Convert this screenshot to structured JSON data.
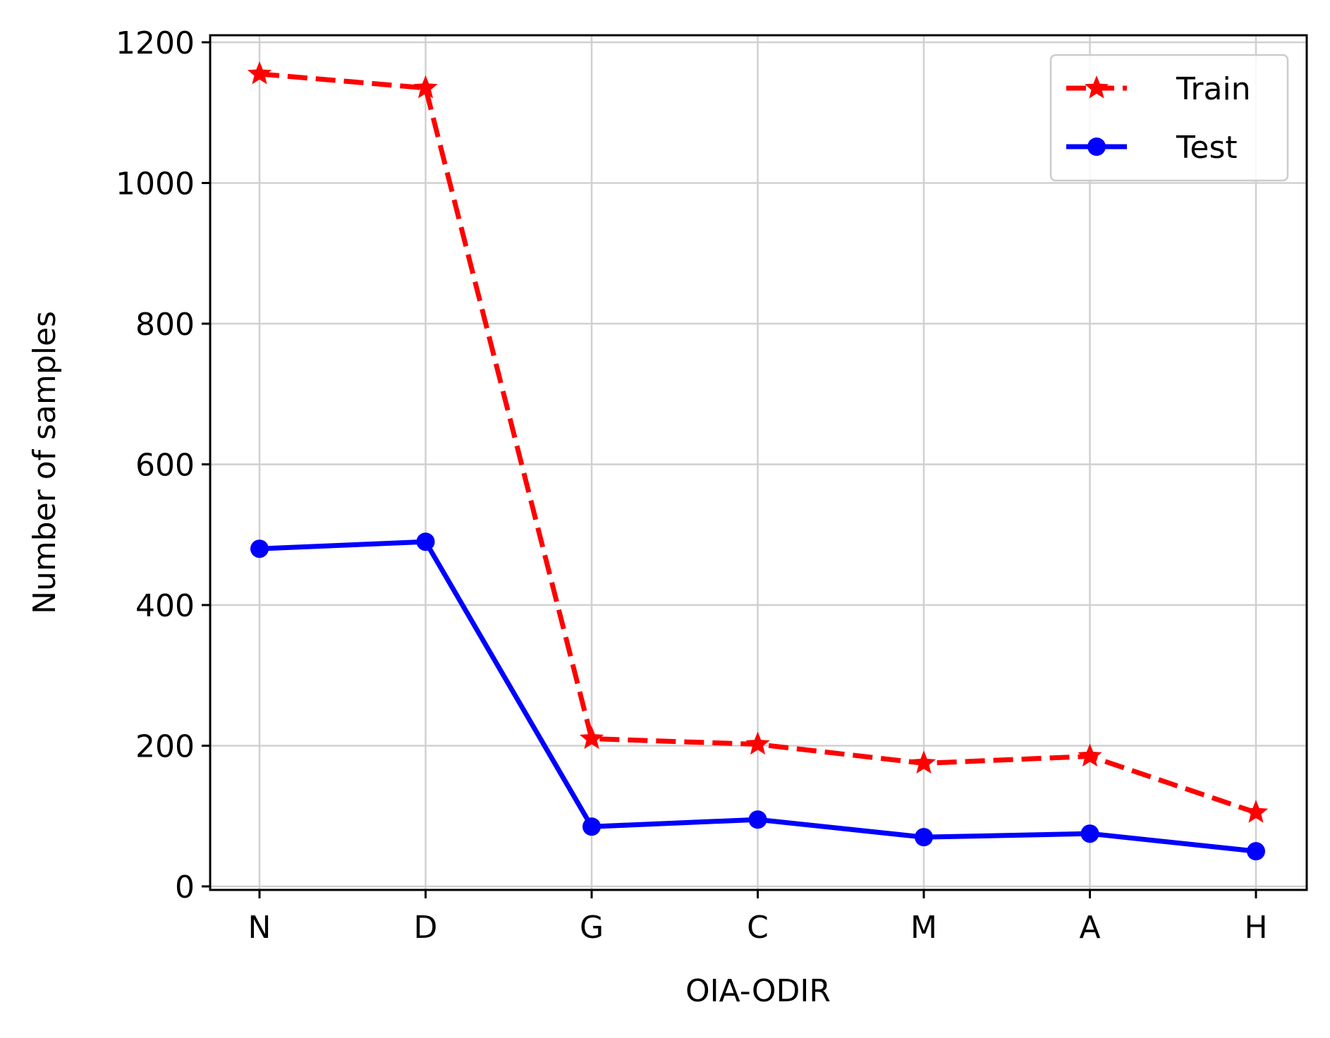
{
  "chart_data": {
    "type": "line",
    "title": "",
    "xlabel": "OIA-ODIR",
    "ylabel": "Number of samples",
    "categories": [
      "N",
      "D",
      "G",
      "C",
      "M",
      "A",
      "H"
    ],
    "ylim": [
      -5,
      1210
    ],
    "yticks": [
      0,
      200,
      400,
      600,
      800,
      1000,
      1200
    ],
    "ytick_labels": [
      "0",
      "200",
      "400",
      "600",
      "800",
      "1000",
      "1200"
    ],
    "grid": true,
    "legend_position": "top-right",
    "series": [
      {
        "name": "Train",
        "values": [
          1155,
          1135,
          210,
          202,
          175,
          185,
          105
        ],
        "color": "#ff0000",
        "line_style": "dashed",
        "marker": "star"
      },
      {
        "name": "Test",
        "values": [
          480,
          490,
          85,
          95,
          70,
          75,
          50
        ],
        "color": "#0000ff",
        "line_style": "solid",
        "marker": "circle"
      }
    ]
  }
}
